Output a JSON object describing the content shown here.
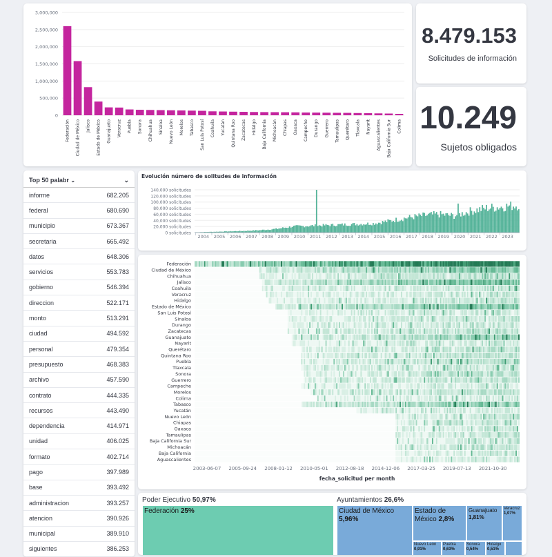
{
  "metrics": {
    "solicitudes_value": "8.479.153",
    "solicitudes_label": "Solicitudes de información",
    "sujetos_value": "10.249",
    "sujetos_label": "Sujetos obligados"
  },
  "table": {
    "header_label": "Top 50 palabr",
    "rows": [
      {
        "word": "informe",
        "count": "682.205"
      },
      {
        "word": "federal",
        "count": "680.690"
      },
      {
        "word": "municipio",
        "count": "673.367"
      },
      {
        "word": "secretaria",
        "count": "665.492"
      },
      {
        "word": "datos",
        "count": "648.306"
      },
      {
        "word": "servicios",
        "count": "553.783"
      },
      {
        "word": "gobierno",
        "count": "546.394"
      },
      {
        "word": "direccion",
        "count": "522.171"
      },
      {
        "word": "monto",
        "count": "513.291"
      },
      {
        "word": "ciudad",
        "count": "494.592"
      },
      {
        "word": "personal",
        "count": "479.354"
      },
      {
        "word": "presupuesto",
        "count": "468.383"
      },
      {
        "word": "archivo",
        "count": "457.590"
      },
      {
        "word": "contrato",
        "count": "444.335"
      },
      {
        "word": "recursos",
        "count": "443.490"
      },
      {
        "word": "dependencia",
        "count": "414.971"
      },
      {
        "word": "unidad",
        "count": "406.025"
      },
      {
        "word": "formato",
        "count": "402.714"
      },
      {
        "word": "pago",
        "count": "397.989"
      },
      {
        "word": "base",
        "count": "393.492"
      },
      {
        "word": "administracion",
        "count": "393.257"
      },
      {
        "word": "atencion",
        "count": "390.926"
      },
      {
        "word": "municipal",
        "count": "389.910"
      },
      {
        "word": "siguientes",
        "count": "386.253"
      }
    ]
  },
  "treemap": {
    "group1_label": "Poder Ejecutivo",
    "group1_pct": "50,97%",
    "group2_label": "Ayuntamientos",
    "group2_pct": "26,6%",
    "tiles": [
      {
        "name": "Federación",
        "pct": "25%"
      },
      {
        "name": "Ciudad de México",
        "pct": "5,96%"
      },
      {
        "name": "Estado de México",
        "pct": "2,8%"
      },
      {
        "name": "Guanajuato",
        "pct": "1,81%"
      },
      {
        "name": "Veracruz",
        "pct": "1,07%"
      },
      {
        "name": "Nuevo León",
        "pct": "0,91%"
      },
      {
        "name": "Puebla",
        "pct": "0,63%"
      },
      {
        "name": "Sonora",
        "pct": "0,54%"
      },
      {
        "name": "Hidalgo",
        "pct": "0,51%"
      }
    ]
  },
  "chart_data": [
    {
      "type": "bar",
      "title": "",
      "color": "#c4259e",
      "ylim": [
        0,
        3000000
      ],
      "yticks": [
        "0",
        "500,000",
        "1,000,000",
        "1,500,000",
        "2,000,000",
        "2,500,000",
        "3,000,000"
      ],
      "categories": [
        "Federación",
        "Ciudad de México",
        "Jalisco",
        "Estado de México",
        "Guanajuato",
        "Veracruz",
        "Puebla",
        "Sonora",
        "Chihuahua",
        "Sinaloa",
        "Nuevo León",
        "Morelos",
        "Tabasco",
        "San Luis Potosí",
        "Coahuila",
        "Yucatán",
        "Quintana Roo",
        "Zacatecas",
        "Hidalgo",
        "Baja California",
        "Michoacán",
        "Chiapas",
        "Oaxaca",
        "Campeche",
        "Durango",
        "Guerrero",
        "Tamaulipas",
        "Querétaro",
        "Tlaxcala",
        "Nayarit",
        "Aguascalientes",
        "Baja California Sur",
        "Colima"
      ],
      "values": [
        2600000,
        1580000,
        820000,
        400000,
        230000,
        225000,
        170000,
        160000,
        155000,
        150000,
        145000,
        140000,
        135000,
        130000,
        115000,
        110000,
        105000,
        100000,
        95000,
        92000,
        90000,
        88000,
        85000,
        80000,
        78000,
        75000,
        72000,
        70000,
        65000,
        60000,
        55000,
        50000,
        40000
      ]
    },
    {
      "type": "bar",
      "title": "Evolución número de solitudes de información",
      "color": "#54b399",
      "ylim": [
        0,
        140000
      ],
      "yticks": [
        "0 solicitudes",
        "20,000 solicitudes",
        "40,000 solicitudes",
        "60,000 solicitudes",
        "80,000 solicitudes",
        "100,000 solicitudes",
        "120,000 solicitudes",
        "140,000 solicitudes"
      ],
      "xticks": [
        "2004",
        "2005",
        "2006",
        "2007",
        "2008",
        "2009",
        "2010",
        "2011",
        "2012",
        "2013",
        "2014",
        "2015",
        "2016",
        "2017",
        "2018",
        "2019",
        "2020",
        "2021",
        "2022",
        "2023"
      ],
      "period": "2003-06 to 2023-06, monthly",
      "yearly_level": [
        1000,
        2500,
        4000,
        5500,
        8000,
        12000,
        20000,
        22000,
        24000,
        26000,
        28000,
        30000,
        38000,
        48000,
        55000,
        60000,
        55000,
        70000,
        80000,
        85000,
        90000
      ]
    },
    {
      "type": "heatmap",
      "xlabel": "fecha_solicitud per month",
      "xticks": [
        "2003-06-07",
        "2005-09-24",
        "2008-01-12",
        "2010-05-01",
        "2012-08-18",
        "2014-12-06",
        "2017-03-25",
        "2019-07-13",
        "2021-10-30"
      ],
      "rows": [
        "Federación",
        "Ciudad de México",
        "Chihuahua",
        "Jalisco",
        "Coahuila",
        "Veracruz",
        "Hidalgo",
        "Estado de México",
        "San Luis Potosí",
        "Sinaloa",
        "Durango",
        "Zacatecas",
        "Guanajuato",
        "Nayarit",
        "Querétaro",
        "Quintana Roo",
        "Puebla",
        "Tlaxcala",
        "Sonora",
        "Guerrero",
        "Campeche",
        "Morelos",
        "Colima",
        "Tabasco",
        "Yucatán",
        "Nuevo León",
        "Chiapas",
        "Oaxaca",
        "Tamaulipas",
        "Baja California Sur",
        "Michoacán",
        "Baja California",
        "Aguascalientes"
      ],
      "start_fraction": [
        0.0,
        0.2,
        0.2,
        0.21,
        0.21,
        0.22,
        0.23,
        0.25,
        0.29,
        0.29,
        0.29,
        0.29,
        0.3,
        0.3,
        0.33,
        0.33,
        0.33,
        0.33,
        0.34,
        0.34,
        0.33,
        0.36,
        0.38,
        0.33,
        0.5,
        0.62,
        0.62,
        0.62,
        0.62,
        0.62,
        0.62,
        0.62,
        0.62
      ],
      "intensity": [
        0.95,
        0.55,
        0.3,
        0.6,
        0.25,
        0.25,
        0.25,
        0.55,
        0.25,
        0.25,
        0.25,
        0.3,
        0.45,
        0.2,
        0.3,
        0.3,
        0.35,
        0.25,
        0.3,
        0.3,
        0.2,
        0.3,
        0.2,
        0.5,
        0.2,
        0.25,
        0.25,
        0.25,
        0.3,
        0.25,
        0.3,
        0.25,
        0.25
      ]
    }
  ]
}
